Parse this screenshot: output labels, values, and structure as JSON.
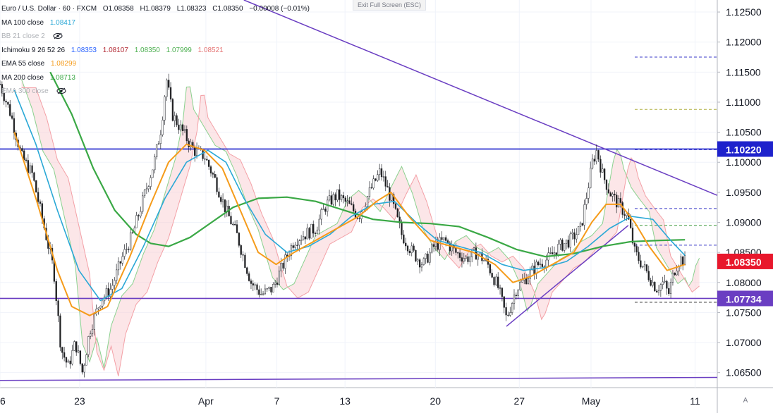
{
  "header": {
    "symbol": "Euro / U.S. Dollar · 60 · FXCM",
    "open": "O1.08358",
    "high": "H1.08379",
    "low": "L1.08323",
    "close": "C1.08350",
    "change": "−0.00008 (−0.01%)"
  },
  "exit_fullscreen_label": "Exit Full Screen (ESC)",
  "auto_label": "A",
  "indicators": [
    {
      "label": "MA 100 close",
      "value": "1.08417",
      "color": "#2aa8d6",
      "hidden": false
    },
    {
      "label": "BB 21 close 2",
      "value": "",
      "color": "#b0b3b8",
      "hidden": true
    },
    {
      "label": "Ichimoku 9 26 52 26",
      "values": [
        "1.08353",
        "1.08107",
        "1.08350",
        "1.07999",
        "1.08521"
      ],
      "colors": [
        "#2962ff",
        "#b22833",
        "#4caf50",
        "#4caf50",
        "#e57373"
      ],
      "hidden": false
    },
    {
      "label": "EMA 55 close",
      "value": "1.08299",
      "color": "#f59b1a",
      "hidden": false
    },
    {
      "label": "MA 200 close",
      "value": "1.08713",
      "color": "#3aa845",
      "hidden": false
    },
    {
      "label": "EMA 300 close",
      "value": "",
      "color": "#b0b3b8",
      "hidden": true
    }
  ],
  "chart_data": {
    "type": "line",
    "series_kind": "candlestick",
    "y_ticks": [
      "1.12500",
      "1.12000",
      "1.11500",
      "1.11000",
      "1.10500",
      "1.10000",
      "1.09500",
      "1.09000",
      "1.08500",
      "1.08000",
      "1.07500",
      "1.07000",
      "1.06500"
    ],
    "ylim": [
      1.0625,
      1.127
    ],
    "x_ticks": [
      {
        "label": "6",
        "t": 0
      },
      {
        "label": "23",
        "t": 0.111
      },
      {
        "label": "Apr",
        "t": 0.287
      },
      {
        "label": "7",
        "t": 0.386
      },
      {
        "label": "13",
        "t": 0.481
      },
      {
        "label": "20",
        "t": 0.607
      },
      {
        "label": "27",
        "t": 0.724
      },
      {
        "label": "May",
        "t": 0.824
      },
      {
        "label": "11",
        "t": 0.969
      }
    ],
    "price_tags": [
      {
        "label": "1.10220",
        "value": 1.1022,
        "color": "#1e22cc"
      },
      {
        "label": "1.08350",
        "value": 1.0835,
        "color": "#e8172c"
      },
      {
        "label": "1.07734",
        "value": 1.07734,
        "color": "#6a3ec2"
      }
    ],
    "horizontal_levels": [
      {
        "value": 1.1022,
        "color": "#1e22cc",
        "style": "solid"
      },
      {
        "value": 1.07734,
        "color": "#6a3ec2",
        "style": "solid"
      }
    ],
    "trendlines": [
      {
        "from": [
          0.34,
          1.127
        ],
        "to": [
          1.0,
          1.0945
        ],
        "color": "#6a3ec2"
      },
      {
        "from": [
          0.0,
          1.0637
        ],
        "to": [
          1.0,
          1.0642
        ],
        "color": "#6a3ec2"
      },
      {
        "from": [
          0.706,
          1.0727
        ],
        "to": [
          0.876,
          1.0895
        ],
        "color": "#6a3ec2"
      }
    ],
    "fib_levels": [
      {
        "value": 1.1175,
        "color": "#3a3ac8"
      },
      {
        "value": 1.1088,
        "color": "#b0b040"
      },
      {
        "value": 1.1021,
        "color": "#3a3ac8"
      },
      {
        "value": 1.0923,
        "color": "#3a3ac8"
      },
      {
        "value": 1.0895,
        "color": "#3a9a3a"
      },
      {
        "value": 1.0862,
        "color": "#3a3ac8"
      },
      {
        "value": 1.0767,
        "color": "#333333"
      }
    ],
    "price_path": [
      [
        0.0,
        1.113
      ],
      [
        0.015,
        1.108
      ],
      [
        0.03,
        1.101
      ],
      [
        0.045,
        1.098
      ],
      [
        0.06,
        1.09
      ],
      [
        0.075,
        1.082
      ],
      [
        0.085,
        1.069
      ],
      [
        0.095,
        1.066
      ],
      [
        0.105,
        1.07
      ],
      [
        0.115,
        1.065
      ],
      [
        0.125,
        1.072
      ],
      [
        0.14,
        1.077
      ],
      [
        0.155,
        1.079
      ],
      [
        0.17,
        1.084
      ],
      [
        0.185,
        1.088
      ],
      [
        0.2,
        1.094
      ],
      [
        0.215,
        1.1
      ],
      [
        0.225,
        1.106
      ],
      [
        0.232,
        1.114
      ],
      [
        0.24,
        1.108
      ],
      [
        0.255,
        1.105
      ],
      [
        0.27,
        1.102
      ],
      [
        0.285,
        1.101
      ],
      [
        0.3,
        1.097
      ],
      [
        0.315,
        1.092
      ],
      [
        0.33,
        1.088
      ],
      [
        0.34,
        1.084
      ],
      [
        0.35,
        1.08
      ],
      [
        0.365,
        1.078
      ],
      [
        0.38,
        1.079
      ],
      [
        0.395,
        1.083
      ],
      [
        0.41,
        1.087
      ],
      [
        0.425,
        1.088
      ],
      [
        0.44,
        1.089
      ],
      [
        0.455,
        1.093
      ],
      [
        0.47,
        1.0945
      ],
      [
        0.485,
        1.093
      ],
      [
        0.5,
        1.091
      ],
      [
        0.515,
        1.095
      ],
      [
        0.53,
        1.0985
      ],
      [
        0.545,
        1.094
      ],
      [
        0.56,
        1.088
      ],
      [
        0.575,
        1.085
      ],
      [
        0.59,
        1.083
      ],
      [
        0.605,
        1.086
      ],
      [
        0.62,
        1.087
      ],
      [
        0.635,
        1.085
      ],
      [
        0.65,
        1.084
      ],
      [
        0.665,
        1.085
      ],
      [
        0.68,
        1.083
      ],
      [
        0.695,
        1.079
      ],
      [
        0.706,
        1.074
      ],
      [
        0.72,
        1.079
      ],
      [
        0.735,
        1.081
      ],
      [
        0.75,
        1.083
      ],
      [
        0.765,
        1.084
      ],
      [
        0.78,
        1.086
      ],
      [
        0.795,
        1.087
      ],
      [
        0.81,
        1.089
      ],
      [
        0.82,
        1.096
      ],
      [
        0.826,
        1.1
      ],
      [
        0.832,
        1.102
      ],
      [
        0.84,
        1.098
      ],
      [
        0.85,
        1.095
      ],
      [
        0.862,
        1.093
      ],
      [
        0.875,
        1.091
      ],
      [
        0.885,
        1.085
      ],
      [
        0.895,
        1.083
      ],
      [
        0.905,
        1.081
      ],
      [
        0.915,
        1.079
      ],
      [
        0.925,
        1.08
      ],
      [
        0.932,
        1.078
      ],
      [
        0.94,
        1.082
      ],
      [
        0.948,
        1.084
      ],
      [
        0.955,
        1.0835
      ]
    ],
    "ema55_path": [
      [
        0.02,
        1.105
      ],
      [
        0.05,
        1.094
      ],
      [
        0.08,
        1.082
      ],
      [
        0.1,
        1.076
      ],
      [
        0.125,
        1.0745
      ],
      [
        0.15,
        1.076
      ],
      [
        0.18,
        1.084
      ],
      [
        0.21,
        1.093
      ],
      [
        0.235,
        1.1
      ],
      [
        0.26,
        1.103
      ],
      [
        0.285,
        1.102
      ],
      [
        0.31,
        1.099
      ],
      [
        0.335,
        1.092
      ],
      [
        0.36,
        1.085
      ],
      [
        0.385,
        1.083
      ],
      [
        0.41,
        1.085
      ],
      [
        0.44,
        1.087
      ],
      [
        0.47,
        1.089
      ],
      [
        0.5,
        1.091
      ],
      [
        0.525,
        1.0935
      ],
      [
        0.545,
        1.095
      ],
      [
        0.57,
        1.091
      ],
      [
        0.6,
        1.087
      ],
      [
        0.63,
        1.086
      ],
      [
        0.66,
        1.085
      ],
      [
        0.69,
        1.083
      ],
      [
        0.715,
        1.08
      ],
      [
        0.74,
        1.081
      ],
      [
        0.77,
        1.083
      ],
      [
        0.8,
        1.085
      ],
      [
        0.825,
        1.09
      ],
      [
        0.845,
        1.093
      ],
      [
        0.865,
        1.093
      ],
      [
        0.885,
        1.09
      ],
      [
        0.905,
        1.086
      ],
      [
        0.93,
        1.082
      ],
      [
        0.955,
        1.083
      ]
    ],
    "ma100_path": [
      [
        0.02,
        1.112
      ],
      [
        0.05,
        1.103
      ],
      [
        0.08,
        1.092
      ],
      [
        0.11,
        1.082
      ],
      [
        0.14,
        1.077
      ],
      [
        0.17,
        1.079
      ],
      [
        0.2,
        1.086
      ],
      [
        0.23,
        1.094
      ],
      [
        0.26,
        1.1
      ],
      [
        0.29,
        1.102
      ],
      [
        0.315,
        1.1
      ],
      [
        0.34,
        1.094
      ],
      [
        0.37,
        1.088
      ],
      [
        0.4,
        1.085
      ],
      [
        0.43,
        1.086
      ],
      [
        0.46,
        1.088
      ],
      [
        0.49,
        1.091
      ],
      [
        0.52,
        1.093
      ],
      [
        0.55,
        1.0935
      ],
      [
        0.58,
        1.09
      ],
      [
        0.61,
        1.087
      ],
      [
        0.64,
        1.086
      ],
      [
        0.67,
        1.085
      ],
      [
        0.7,
        1.083
      ],
      [
        0.73,
        1.082
      ],
      [
        0.76,
        1.0825
      ],
      [
        0.79,
        1.0835
      ],
      [
        0.82,
        1.086
      ],
      [
        0.85,
        1.089
      ],
      [
        0.88,
        1.091
      ],
      [
        0.91,
        1.0905
      ],
      [
        0.935,
        1.087
      ],
      [
        0.955,
        1.0845
      ]
    ],
    "ma200_path": [
      [
        0.07,
        1.115
      ],
      [
        0.1,
        1.108
      ],
      [
        0.13,
        1.099
      ],
      [
        0.16,
        1.092
      ],
      [
        0.19,
        1.088
      ],
      [
        0.21,
        1.0865
      ],
      [
        0.235,
        1.086
      ],
      [
        0.265,
        1.0875
      ],
      [
        0.295,
        1.09
      ],
      [
        0.325,
        1.0925
      ],
      [
        0.36,
        1.094
      ],
      [
        0.4,
        1.0942
      ],
      [
        0.44,
        1.0935
      ],
      [
        0.48,
        1.092
      ],
      [
        0.52,
        1.0905
      ],
      [
        0.56,
        1.09
      ],
      [
        0.6,
        1.0898
      ],
      [
        0.64,
        1.0893
      ],
      [
        0.68,
        1.0875
      ],
      [
        0.72,
        1.0855
      ],
      [
        0.76,
        1.0843
      ],
      [
        0.8,
        1.0848
      ],
      [
        0.84,
        1.086
      ],
      [
        0.88,
        1.0868
      ],
      [
        0.92,
        1.087
      ],
      [
        0.955,
        1.0871
      ]
    ]
  }
}
